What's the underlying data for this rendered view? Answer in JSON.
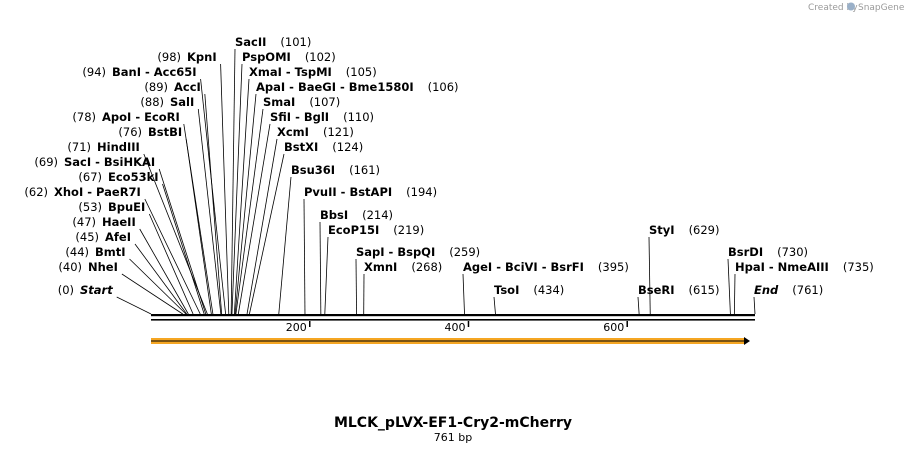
{
  "credit": {
    "prefix": "Created by",
    "brand": "SnapGene"
  },
  "map": {
    "name": "MLCK_pLVX-EF1-Cry2-mCherry",
    "length_label": "761 bp",
    "length": 761,
    "ticks": [
      {
        "pos": 200,
        "label": "200"
      },
      {
        "pos": 400,
        "label": "400"
      },
      {
        "pos": 600,
        "label": "600"
      }
    ],
    "colors": {
      "feature": "#f5a623",
      "line": "#000000"
    }
  },
  "labels": [
    {
      "text": "Start",
      "num": "(0)",
      "pos": 0,
      "italic": true
    },
    {
      "text": "NheI",
      "num": "(40)",
      "pos": 40
    },
    {
      "text": "BmtI",
      "num": "(44)",
      "pos": 44
    },
    {
      "text": "AfeI",
      "num": "(45)",
      "pos": 45
    },
    {
      "text": "HaeII",
      "num": "(47)",
      "pos": 47
    },
    {
      "text": "BpuEI",
      "num": "(53)",
      "pos": 53
    },
    {
      "text": "XhoI - PaeR7I",
      "num": "(62)",
      "pos": 62
    },
    {
      "text": "Eco53kI",
      "num": "(67)",
      "pos": 67
    },
    {
      "text": "SacI - BsiHKAI",
      "num": "(69)",
      "pos": 69
    },
    {
      "text": "HindIII",
      "num": "(71)",
      "pos": 71
    },
    {
      "text": "BstBI",
      "num": "(76)",
      "pos": 76
    },
    {
      "text": "ApoI - EcoRI",
      "num": "(78)",
      "pos": 78
    },
    {
      "text": "SalI",
      "num": "(88)",
      "pos": 88
    },
    {
      "text": "AccI",
      "num": "(89)",
      "pos": 89
    },
    {
      "text": "BanI - Acc65I",
      "num": "(94)",
      "pos": 94
    },
    {
      "text": "KpnI",
      "num": "(98)",
      "pos": 98
    },
    {
      "text": "SacII",
      "num": "(101)",
      "pos": 101
    },
    {
      "text": "PspOMI",
      "num": "(102)",
      "pos": 102
    },
    {
      "text": "XmaI - TspMI",
      "num": "(105)",
      "pos": 105
    },
    {
      "text": "ApaI - BaeGI - Bme1580I",
      "num": "(106)",
      "pos": 106
    },
    {
      "text": "SmaI",
      "num": "(107)",
      "pos": 107
    },
    {
      "text": "SfiI - BglI",
      "num": "(110)",
      "pos": 110
    },
    {
      "text": "XcmI",
      "num": "(121)",
      "pos": 121
    },
    {
      "text": "BstXI",
      "num": "(124)",
      "pos": 124
    },
    {
      "text": "Bsu36I",
      "num": "(161)",
      "pos": 161
    },
    {
      "text": "PvuII - BstAPI",
      "num": "(194)",
      "pos": 194
    },
    {
      "text": "BbsI",
      "num": "(214)",
      "pos": 214
    },
    {
      "text": "EcoP15I",
      "num": "(219)",
      "pos": 219
    },
    {
      "text": "SapI - BspQI",
      "num": "(259)",
      "pos": 259
    },
    {
      "text": "XmnI",
      "num": "(268)",
      "pos": 268
    },
    {
      "text": "AgeI - BciVI - BsrFI",
      "num": "(395)",
      "pos": 395
    },
    {
      "text": "TsoI",
      "num": "(434)",
      "pos": 434
    },
    {
      "text": "BseRI",
      "num": "(615)",
      "pos": 615
    },
    {
      "text": "StyI",
      "num": "(629)",
      "pos": 629
    },
    {
      "text": "BsrDI",
      "num": "(730)",
      "pos": 730
    },
    {
      "text": "HpaI - NmeAIII",
      "num": "(735)",
      "pos": 735
    },
    {
      "text": "End",
      "num": "(761)",
      "pos": 761,
      "italic": true
    }
  ]
}
